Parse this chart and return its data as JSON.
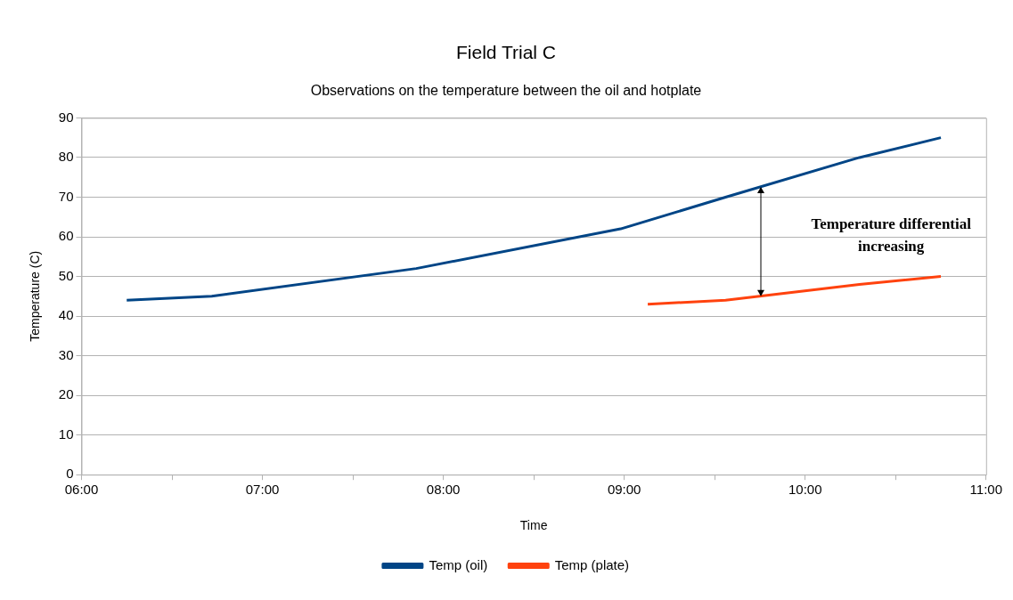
{
  "chart_data": {
    "type": "line",
    "title": "Field Trial C",
    "subtitle": "Observations on the temperature between the oil and hotplate",
    "xlabel": "Time",
    "ylabel": "Temperature (C)",
    "series": [
      {
        "name": "Temp (oil)",
        "color": "#004586",
        "x": [
          6.25,
          6.72,
          7.85,
          8.98,
          9.56,
          10.3,
          10.75
        ],
        "values": [
          44,
          45,
          52,
          62,
          70,
          80,
          85
        ]
      },
      {
        "name": "Temp (plate)",
        "color": "#ff420e",
        "x": [
          9.13,
          9.56,
          10.3,
          10.75
        ],
        "values": [
          43,
          44,
          48,
          50
        ]
      }
    ],
    "xlim": [
      6,
      11
    ],
    "xticks": [
      {
        "value": 6,
        "label": "06:00"
      },
      {
        "value": 6.5,
        "label": null
      },
      {
        "value": 7,
        "label": "07:00"
      },
      {
        "value": 7.5,
        "label": null
      },
      {
        "value": 8,
        "label": "08:00"
      },
      {
        "value": 8.5,
        "label": null
      },
      {
        "value": 9,
        "label": "09:00"
      },
      {
        "value": 9.5,
        "label": null
      },
      {
        "value": 10,
        "label": "10:00"
      },
      {
        "value": 10.5,
        "label": null
      },
      {
        "value": 11,
        "label": "11:00"
      }
    ],
    "ylim": [
      0,
      90
    ],
    "yticks": [
      0,
      10,
      20,
      30,
      40,
      50,
      60,
      70,
      80,
      90
    ],
    "grid": "y",
    "legend": "bottom",
    "marker": "none",
    "line_style": "solid",
    "annotations": [
      "Temperature differential increasing"
    ]
  }
}
